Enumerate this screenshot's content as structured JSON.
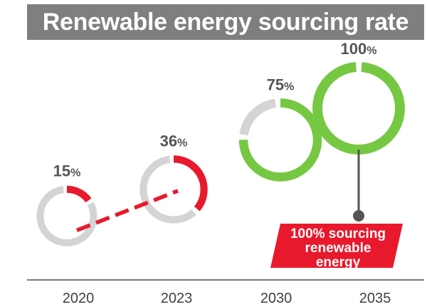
{
  "header": {
    "title": "Renewable energy sourcing rate"
  },
  "chart_data": {
    "type": "donut-progress",
    "title": "Renewable energy sourcing rate",
    "categories": [
      "2020",
      "2023",
      "2030",
      "2035"
    ],
    "values": [
      15,
      36,
      75,
      100
    ],
    "unit": "%",
    "series_colors": {
      "actual": "#e8192c",
      "target": "#76c843",
      "remainder": "#d4d4d4"
    },
    "actual_years": [
      "2020",
      "2023"
    ],
    "target_years": [
      "2030",
      "2035"
    ],
    "callout": {
      "year": "2035",
      "lines": [
        "100% sourcing",
        "renewable",
        "energy"
      ],
      "color": "#e8192c"
    },
    "trend_line_color": "#e8192c",
    "grid": false,
    "legend": "none"
  }
}
